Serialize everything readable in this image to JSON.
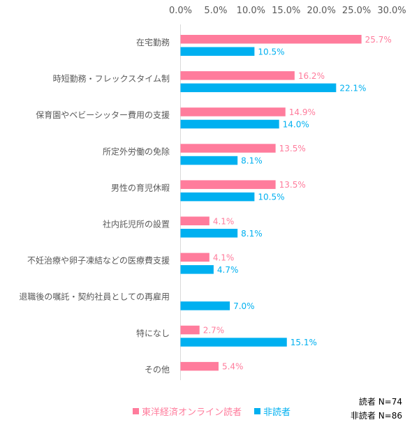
{
  "chart_data": {
    "type": "bar",
    "orientation": "horizontal",
    "categories": [
      "在宅勤務",
      "時短勤務・フレックスタイム制",
      "保育園やベビーシッター費用の支援",
      "所定外労働の免除",
      "男性の育児休暇",
      "社内託児所の設置",
      "不妊治療や卵子凍結などの医療費支援",
      "退職後の嘱託・契約社員としての再雇用",
      "特になし",
      "その他"
    ],
    "series": [
      {
        "name": "東洋経済オンライン読者",
        "color": "#FF7C9C",
        "values": [
          25.7,
          16.2,
          14.9,
          13.5,
          13.5,
          4.1,
          4.1,
          null,
          2.7,
          5.4
        ],
        "labels": [
          "25.7%",
          "16.2%",
          "14.9%",
          "13.5%",
          "13.5%",
          "4.1%",
          "4.1%",
          "",
          "2.7%",
          "5.4%"
        ]
      },
      {
        "name": "非読者",
        "color": "#00B0F0",
        "values": [
          10.5,
          22.1,
          14.0,
          8.1,
          10.5,
          8.1,
          4.7,
          7.0,
          15.1,
          null
        ],
        "labels": [
          "10.5%",
          "22.1%",
          "14.0%",
          "8.1%",
          "10.5%",
          "8.1%",
          "4.7%",
          "7.0%",
          "15.1%",
          ""
        ]
      }
    ],
    "xlim": [
      0,
      30
    ],
    "ticks": [
      "0.0%",
      "5.0%",
      "10.0%",
      "15.0%",
      "20.0%",
      "25.0%",
      "30.0%"
    ],
    "axis_position": "top",
    "grid": false,
    "legend_position": "bottom"
  },
  "notes": {
    "reader_n": "読者 N=74",
    "nonreader_n": "非読者 N=86"
  }
}
